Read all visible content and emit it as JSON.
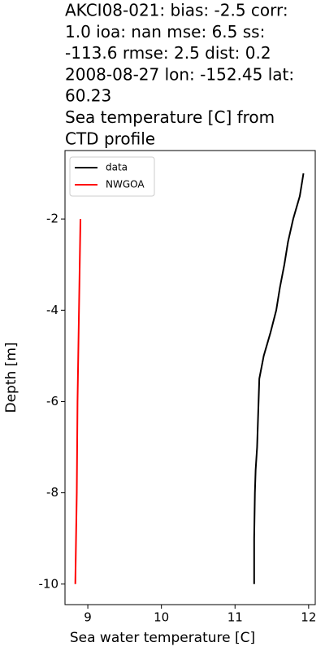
{
  "chart_data": {
    "type": "line",
    "title": [
      "AKCI08-021: bias: -2.5  corr:",
      "1.0  ioa: nan  mse: 6.5  ss:",
      "-113.6  rmse: 2.5  dist: 0.2",
      "2008-08-27 lon: -152.45 lat:",
      "60.23",
      "Sea temperature [C] from",
      "CTD profile"
    ],
    "xlabel": "Sea water temperature [C]",
    "ylabel": "Depth [m]",
    "xlim": [
      8.69,
      12.09
    ],
    "ylim": [
      -10.45,
      -0.5
    ],
    "xticks": [
      9,
      10,
      11,
      12
    ],
    "yticks": [
      -2,
      -4,
      -6,
      -8,
      -10
    ],
    "legend": "upper left",
    "series": [
      {
        "name": "data",
        "color": "#000000",
        "values": [
          11.93,
          11.88,
          11.79,
          11.72,
          11.67,
          11.61,
          11.56,
          11.48,
          11.39,
          11.33,
          11.32,
          11.31,
          11.3,
          11.28,
          11.27,
          11.26,
          11.26
        ],
        "depth": [
          -1.0,
          -1.5,
          -2.0,
          -2.5,
          -3.0,
          -3.5,
          -4.0,
          -4.5,
          -5.0,
          -5.5,
          -6.0,
          -6.5,
          -7.0,
          -7.5,
          -8.0,
          -9.0,
          -10.0
        ]
      },
      {
        "name": "NWGOA",
        "color": "#ff0000",
        "values": [
          8.9,
          8.89,
          8.88,
          8.87,
          8.86,
          8.855,
          8.85,
          8.84,
          8.83
        ],
        "depth": [
          -2,
          -3,
          -4,
          -5,
          -6,
          -7,
          -8,
          -9,
          -10
        ]
      }
    ]
  }
}
